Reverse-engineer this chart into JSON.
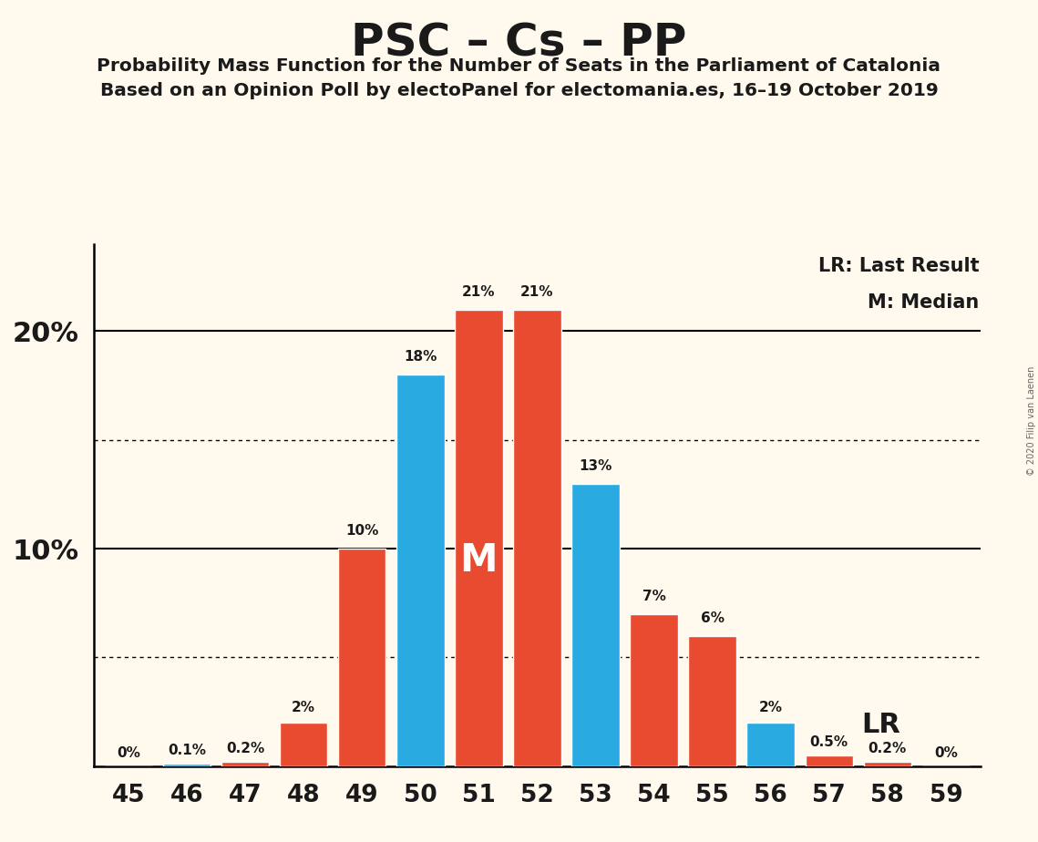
{
  "title": "PSC – Cs – PP",
  "subtitle1": "Probability Mass Function for the Number of Seats in the Parliament of Catalonia",
  "subtitle2": "Based on an Opinion Poll by electoPanel for electomania.es, 16–19 October 2019",
  "copyright": "© 2020 Filip van Laenen",
  "seats": [
    45,
    46,
    47,
    48,
    49,
    50,
    51,
    52,
    53,
    54,
    55,
    56,
    57,
    58,
    59
  ],
  "values": [
    0.0,
    0.1,
    0.2,
    2.0,
    10.0,
    18.0,
    21.0,
    21.0,
    13.0,
    7.0,
    6.0,
    2.0,
    0.5,
    0.2,
    0.0
  ],
  "labels": [
    "0%",
    "0.1%",
    "0.2%",
    "2%",
    "10%",
    "18%",
    "21%",
    "21%",
    "13%",
    "7%",
    "6%",
    "2%",
    "0.5%",
    "0.2%",
    "0%"
  ],
  "colors": [
    "#E84B30",
    "#29ABE2",
    "#E84B30",
    "#E84B30",
    "#E84B30",
    "#29ABE2",
    "#E84B30",
    "#E84B30",
    "#29ABE2",
    "#E84B30",
    "#E84B30",
    "#29ABE2",
    "#E84B30",
    "#E84B30",
    "#E84B30"
  ],
  "median_seat": 51,
  "lr_seat": 57,
  "background_color": "#FFFAED",
  "ylim": [
    0,
    24
  ],
  "dotted_lines": [
    5.0,
    15.0
  ],
  "solid_lines": [
    10.0,
    20.0
  ],
  "legend_lr": "LR: Last Result",
  "legend_m": "M: Median"
}
